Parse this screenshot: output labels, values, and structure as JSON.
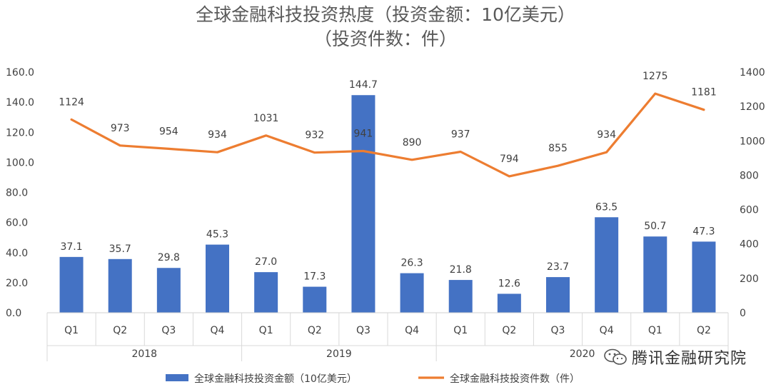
{
  "chart_data": {
    "type": "bar",
    "title_lines": [
      "全球金融科技投资热度（投资金额：10亿美元）",
      "（投资件数：件）"
    ],
    "years": [
      "2018",
      "2019",
      "2020"
    ],
    "year_spans": [
      4,
      4,
      6
    ],
    "categories": [
      "Q1",
      "Q2",
      "Q3",
      "Q4",
      "Q1",
      "Q2",
      "Q3",
      "Q4",
      "Q1",
      "Q2",
      "Q3",
      "Q4",
      "Q1",
      "Q2"
    ],
    "series": [
      {
        "name": "全球金融科技投资金额（10亿美元）",
        "type": "bar",
        "axis": "left",
        "color": "#4472C4",
        "values": [
          37.1,
          35.7,
          29.8,
          45.3,
          27.0,
          17.3,
          144.7,
          26.3,
          21.8,
          12.6,
          23.7,
          63.5,
          50.7,
          47.3
        ],
        "labels": [
          "37.1",
          "35.7",
          "29.8",
          "45.3",
          "27.0",
          "17.3",
          "144.7",
          "26.3",
          "21.8",
          "12.6",
          "23.7",
          "63.5",
          "50.7",
          "47.3"
        ]
      },
      {
        "name": "全球金融科技投资件数（件）",
        "type": "line",
        "axis": "right",
        "color": "#ED7D31",
        "values": [
          1124,
          973,
          954,
          934,
          1031,
          932,
          941,
          890,
          937,
          794,
          855,
          934,
          1275,
          1181
        ],
        "labels": [
          "1124",
          "973",
          "954",
          "934",
          "1031",
          "932",
          "941",
          "890",
          "937",
          "794",
          "855",
          "934",
          "1275",
          "1181"
        ]
      }
    ],
    "y_left": {
      "min": 0,
      "max": 160,
      "ticks": [
        "0.0",
        "20.0",
        "40.0",
        "60.0",
        "80.0",
        "100.0",
        "120.0",
        "140.0",
        "160.0"
      ]
    },
    "y_right": {
      "min": 0,
      "max": 1400,
      "ticks": [
        "0",
        "200",
        "400",
        "600",
        "800",
        "1000",
        "1200",
        "1400"
      ]
    },
    "grid": false,
    "legend_position": "bottom"
  },
  "watermark": {
    "text": "腾讯金融研究院",
    "icon": "wechat-icon"
  }
}
